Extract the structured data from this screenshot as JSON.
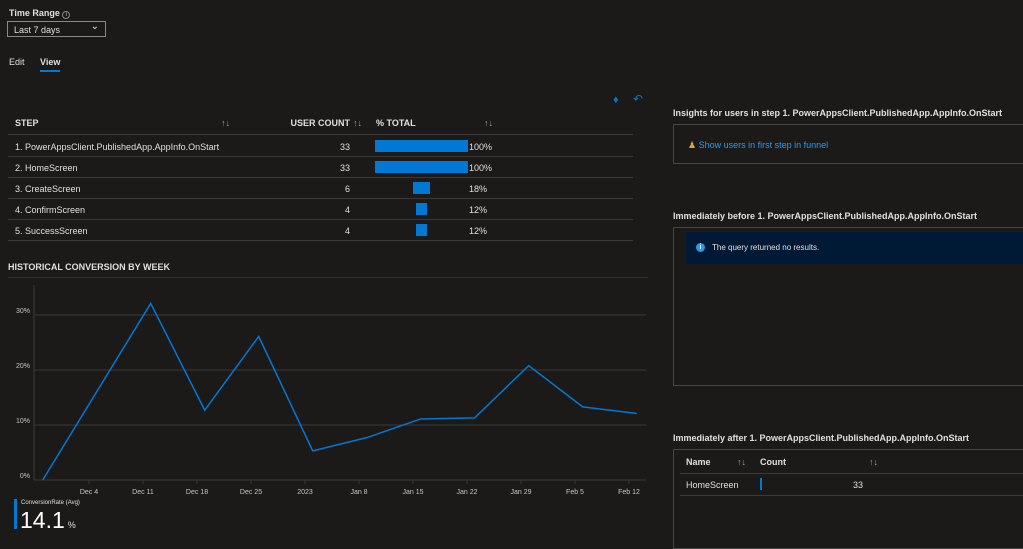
{
  "time_range": {
    "label": "Time Range",
    "value": "Last 7 days"
  },
  "tabs": [
    {
      "label": "Edit",
      "active": false
    },
    {
      "label": "View",
      "active": true
    }
  ],
  "funnel_table": {
    "headers": {
      "step": "STEP",
      "user_count": "USER COUNT",
      "pct_total": "% TOTAL"
    },
    "rows": [
      {
        "step": "1. PowerAppsClient.PublishedApp.AppInfo.OnStart",
        "count": "33",
        "pct": "100%",
        "fraction": 1.0
      },
      {
        "step": "2. HomeScreen",
        "count": "33",
        "pct": "100%",
        "fraction": 1.0
      },
      {
        "step": "3. CreateScreen",
        "count": "6",
        "pct": "18%",
        "fraction": 0.18
      },
      {
        "step": "4. ConfirmScreen",
        "count": "4",
        "pct": "12%",
        "fraction": 0.12
      },
      {
        "step": "5. SuccessScreen",
        "count": "4",
        "pct": "12%",
        "fraction": 0.12
      }
    ]
  },
  "chart_data": {
    "type": "line",
    "title": "HISTORICAL CONVERSION BY WEEK",
    "x": [
      "2022-11-28",
      "2022-12-12",
      "2022-12-19",
      "2022-12-26",
      "2023-01-02",
      "2023-01-09",
      "2023-01-16",
      "2023-01-23",
      "2023-01-30",
      "2023-02-06",
      "2023-02-13"
    ],
    "series": [
      {
        "name": "ConversionRate (Avg)",
        "values": [
          0,
          32.1,
          12.7,
          26.1,
          5.3,
          7.7,
          11.1,
          11.3,
          20.8,
          13.3,
          12.1
        ]
      }
    ],
    "x_ticks": [
      "Dec 4",
      "Dec 11",
      "Dec 18",
      "Dec 25",
      "2023",
      "Jan 8",
      "Jan 15",
      "Jan 22",
      "Jan 29",
      "Feb 5",
      "Feb 12"
    ],
    "y_ticks": [
      "0%",
      "10%",
      "20%",
      "30%"
    ],
    "ylim": [
      0,
      35
    ],
    "grid": true,
    "color": "#0078d4",
    "summary": {
      "label": "ConversionRate (Avg)",
      "value": "14.1",
      "unit": "%"
    }
  },
  "insights": {
    "title": "Insights for users in step 1. PowerAppsClient.PublishedApp.AppInfo.OnStart",
    "link": "Show users in first step in funnel"
  },
  "before": {
    "title": "Immediately before 1. PowerAppsClient.PublishedApp.AppInfo.OnStart",
    "message": "The query returned no results."
  },
  "after": {
    "title": "Immediately after 1. PowerAppsClient.PublishedApp.AppInfo.OnStart",
    "headers": {
      "name": "Name",
      "count": "Count"
    },
    "rows": [
      {
        "name": "HomeScreen",
        "count": "33"
      }
    ]
  }
}
